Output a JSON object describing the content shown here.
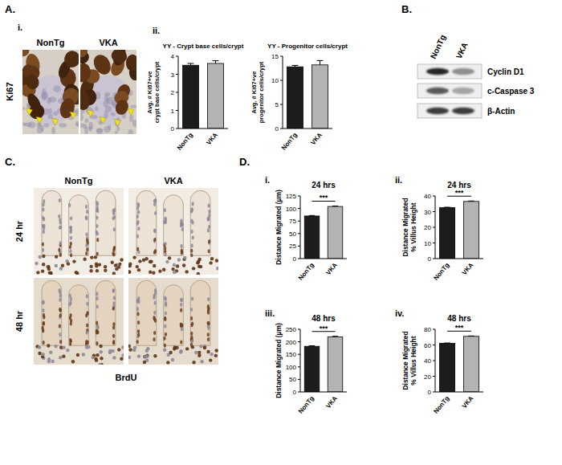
{
  "figure": {
    "panel_labels": [
      "A.",
      "B.",
      "C.",
      "D."
    ],
    "A": {
      "sublabels": [
        "i.",
        "ii."
      ],
      "columns": [
        "NonTg",
        "VKA"
      ],
      "stain": "Ki67"
    },
    "B": {
      "columns": [
        "NonTg",
        "VKA"
      ],
      "rows": [
        "Cyclin D1",
        "c-Caspase 3",
        "β-Actin"
      ]
    },
    "C": {
      "columns": [
        "NonTg",
        "VKA"
      ],
      "rows": [
        "24 hr",
        "48 hr"
      ],
      "stain": "BrdU"
    },
    "D": {
      "sublabels": [
        "i.",
        "ii.",
        "iii.",
        "iv."
      ]
    }
  },
  "chart_data": [
    {
      "type": "bar",
      "title": "YY - Crypt base cells/crypt",
      "ylabel": [
        "Avg. # Ki67+ve",
        "crypt base cells/crypt"
      ],
      "categories": [
        "NonTg",
        "VKA"
      ],
      "values": [
        3.5,
        3.6
      ],
      "errors": [
        0.1,
        0.15
      ],
      "colors": [
        "#1c1c1c",
        "#b3b3b3"
      ],
      "ylim": [
        0,
        4
      ],
      "yticks": [
        0,
        1,
        2,
        3,
        4
      ]
    },
    {
      "type": "bar",
      "title": "YY - Progenitor cells/crypt",
      "ylabel": [
        "Avg. # Ki67+ve",
        "progenitor cells/crypt"
      ],
      "categories": [
        "NonTg",
        "VKA"
      ],
      "values": [
        12.8,
        13.2
      ],
      "errors": [
        0.3,
        0.9
      ],
      "colors": [
        "#1c1c1c",
        "#b3b3b3"
      ],
      "ylim": [
        0,
        15
      ],
      "yticks": [
        0,
        5,
        10,
        15
      ]
    },
    {
      "type": "bar",
      "title": "24 hrs",
      "ylabel": [
        "Distance Migrated (µm)"
      ],
      "categories": [
        "NonTg",
        "VKA"
      ],
      "values": [
        85,
        104
      ],
      "errors": [
        1,
        1
      ],
      "colors": [
        "#1c1c1c",
        "#b3b3b3"
      ],
      "ylim": [
        0,
        125
      ],
      "yticks": [
        0,
        25,
        50,
        75,
        100,
        125
      ],
      "annotation": "***"
    },
    {
      "type": "bar",
      "title": "24 hrs",
      "ylabel": [
        "Distance Migrated",
        "% Villus Height"
      ],
      "categories": [
        "NonTg",
        "VKA"
      ],
      "values": [
        32.5,
        36.5
      ],
      "errors": [
        0.3,
        0.3
      ],
      "colors": [
        "#1c1c1c",
        "#b3b3b3"
      ],
      "ylim": [
        0,
        40
      ],
      "yticks": [
        0,
        10,
        20,
        30,
        40
      ],
      "annotation": "***"
    },
    {
      "type": "bar",
      "title": "48 hrs",
      "ylabel": [
        "Distance Migrated (µm)"
      ],
      "categories": [
        "NonTg",
        "VKA"
      ],
      "values": [
        182,
        220
      ],
      "errors": [
        2,
        2
      ],
      "colors": [
        "#1c1c1c",
        "#b3b3b3"
      ],
      "ylim": [
        0,
        250
      ],
      "yticks": [
        0,
        50,
        100,
        150,
        200,
        250
      ],
      "annotation": "***"
    },
    {
      "type": "bar",
      "title": "48 hrs",
      "ylabel": [
        "Distance Migrated",
        "% Villus Height"
      ],
      "categories": [
        "NonTg",
        "VKA"
      ],
      "values": [
        62,
        71
      ],
      "errors": [
        0.5,
        0.5
      ],
      "colors": [
        "#1c1c1c",
        "#b3b3b3"
      ],
      "ylim": [
        0,
        80
      ],
      "yticks": [
        0,
        20,
        40,
        60,
        80
      ],
      "annotation": "***"
    }
  ]
}
